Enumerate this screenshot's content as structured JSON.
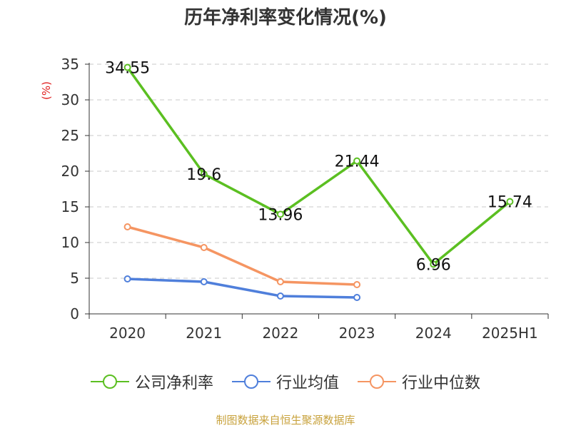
{
  "chart_data": {
    "type": "line",
    "title": "历年净利率变化情况(%)",
    "ylabel": "(%)",
    "xlabel": "",
    "categories": [
      "2020",
      "2021",
      "2022",
      "2023",
      "2024",
      "2025H1"
    ],
    "ylim": [
      0,
      35
    ],
    "yticks": [
      0,
      5,
      10,
      15,
      20,
      25,
      30,
      35
    ],
    "grid": "horizontal dashed",
    "legend_position": "bottom",
    "series": [
      {
        "name": "公司净利率",
        "color": "#5bbf21",
        "values": [
          34.55,
          19.6,
          13.96,
          21.44,
          6.96,
          15.74
        ],
        "labels": [
          "34.55",
          "19.6",
          "13.96",
          "21.44",
          "6.96",
          "15.74"
        ]
      },
      {
        "name": "行业均值",
        "color": "#4f7fdb",
        "values": [
          4.9,
          4.5,
          2.5,
          2.3,
          null,
          null
        ]
      },
      {
        "name": "行业中位数",
        "color": "#f59562",
        "values": [
          12.2,
          9.3,
          4.5,
          4.1,
          null,
          null
        ]
      }
    ]
  },
  "source": "制图数据来自恒生聚源数据库"
}
